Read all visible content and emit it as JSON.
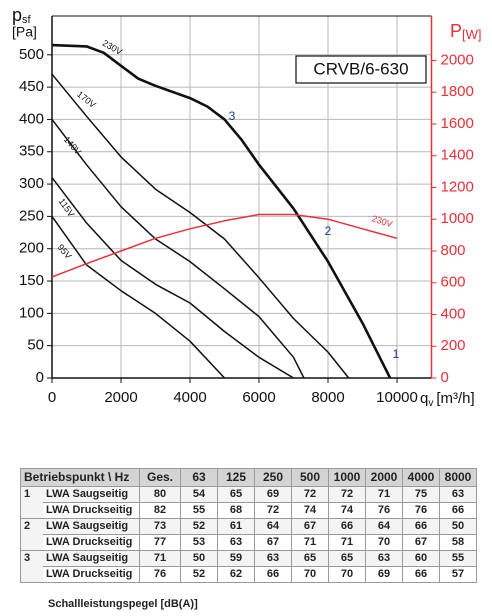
{
  "chart_data": {
    "type": "line",
    "model_label": "CRVB/6-630",
    "x_label": {
      "symbol": "q",
      "subscript": "v",
      "unit": "[m³/h]"
    },
    "y_label": {
      "symbol": "p",
      "subscript": "sf",
      "unit": "[Pa]"
    },
    "y2_label": {
      "symbol": "P",
      "unit": "[W]"
    },
    "xlim": [
      0,
      11000
    ],
    "xticks": [
      0,
      2000,
      4000,
      6000,
      8000,
      10000
    ],
    "ylim": [
      0,
      560
    ],
    "yticks": [
      0,
      50,
      100,
      150,
      200,
      250,
      300,
      350,
      400,
      450,
      500
    ],
    "y2lim": [
      0,
      2280
    ],
    "y2ticks": [
      0,
      200,
      400,
      600,
      800,
      1000,
      1200,
      1400,
      1600,
      1800,
      2000
    ],
    "grid": true,
    "series": [
      {
        "name": "230V",
        "color": "#111111",
        "x": [
          0,
          1000,
          1500,
          2000,
          2500,
          3000,
          4000,
          4500,
          5000,
          5500,
          6000,
          7000,
          8000,
          9000,
          9800
        ],
        "values": [
          515,
          513,
          503,
          483,
          463,
          452,
          433,
          420,
          400,
          368,
          330,
          262,
          180,
          85,
          0
        ]
      },
      {
        "name": "170V",
        "color": "#111111",
        "x": [
          0,
          1000,
          2000,
          3000,
          4000,
          5000,
          6000,
          7000,
          8000,
          8600
        ],
        "values": [
          470,
          405,
          342,
          292,
          256,
          215,
          155,
          92,
          40,
          0
        ]
      },
      {
        "name": "140V",
        "color": "#111111",
        "x": [
          0,
          1000,
          2000,
          3000,
          4000,
          5000,
          6000,
          7000,
          7300
        ],
        "values": [
          400,
          330,
          265,
          215,
          180,
          138,
          95,
          32,
          0
        ]
      },
      {
        "name": "115V",
        "color": "#111111",
        "x": [
          0,
          1000,
          2000,
          3000,
          4000,
          5000,
          6000,
          7000
        ],
        "values": [
          310,
          240,
          182,
          145,
          116,
          72,
          32,
          0
        ]
      },
      {
        "name": "95V",
        "color": "#111111",
        "x": [
          0,
          1000,
          2000,
          3000,
          4000,
          5000
        ],
        "values": [
          250,
          175,
          135,
          100,
          57,
          0
        ]
      },
      {
        "name": "230V",
        "color": "#e8303a",
        "axis": "y2",
        "x": [
          0,
          1000,
          2000,
          3000,
          4000,
          5000,
          6000,
          7000,
          8000,
          9000,
          10000
        ],
        "values": [
          637,
          720,
          800,
          880,
          940,
          990,
          1030,
          1030,
          1000,
          940,
          880
        ]
      }
    ],
    "operating_points": [
      {
        "label": "1",
        "x": 9970,
        "y": 36
      },
      {
        "label": "2",
        "x": 8000,
        "y": 226
      },
      {
        "label": "3",
        "x": 5217,
        "y": 404
      }
    ]
  },
  "table": {
    "header": [
      "Betriebspunkt \\ Hz",
      "Ges.",
      "63",
      "125",
      "250",
      "500",
      "1000",
      "2000",
      "4000",
      "8000"
    ],
    "groups": [
      {
        "point": "1",
        "rows": [
          {
            "label": "LWA Saugseitig",
            "values": [
              80,
              54,
              65,
              69,
              72,
              72,
              71,
              75,
              63
            ]
          },
          {
            "label": "LWA Druckseitig",
            "values": [
              82,
              55,
              68,
              72,
              74,
              74,
              76,
              76,
              66
            ]
          }
        ]
      },
      {
        "point": "2",
        "rows": [
          {
            "label": "LWA Saugseitig",
            "values": [
              73,
              52,
              61,
              64,
              67,
              66,
              64,
              66,
              50
            ]
          },
          {
            "label": "LWA Druckseitig",
            "values": [
              77,
              53,
              63,
              67,
              71,
              71,
              70,
              67,
              58
            ]
          }
        ]
      },
      {
        "point": "3",
        "rows": [
          {
            "label": "LWA Saugseitig",
            "values": [
              71,
              50,
              59,
              63,
              65,
              65,
              63,
              60,
              55
            ]
          },
          {
            "label": "LWA Druckseitig",
            "values": [
              76,
              52,
              62,
              66,
              70,
              70,
              69,
              66,
              57
            ]
          }
        ]
      }
    ],
    "footnote": "Schallleistungspegel [dB(A)]"
  }
}
